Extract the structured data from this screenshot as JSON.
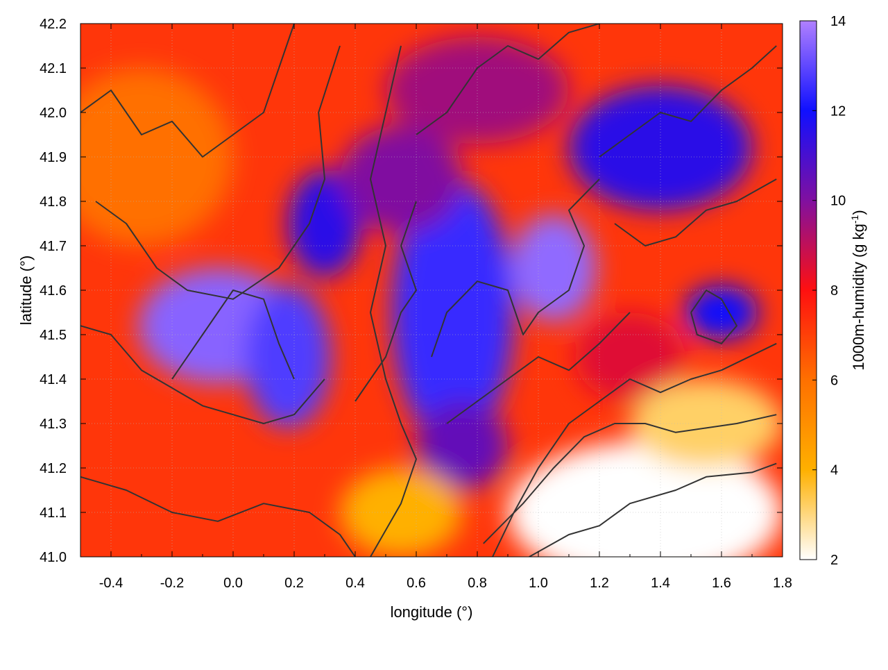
{
  "chart_data": {
    "type": "heatmap",
    "title": "",
    "xlabel": "longitude (°)",
    "ylabel": "latitude (°)",
    "xlim": [
      -0.5,
      1.8
    ],
    "ylim": [
      41.0,
      42.2
    ],
    "x_ticks": [
      "-0.4",
      "-0.2",
      "0.0",
      "0.2",
      "0.4",
      "0.6",
      "0.8",
      "1.0",
      "1.2",
      "1.4",
      "1.6",
      "1.8"
    ],
    "x_tick_values": [
      -0.4,
      -0.2,
      0.0,
      0.2,
      0.4,
      0.6,
      0.8,
      1.0,
      1.2,
      1.4,
      1.6,
      1.8
    ],
    "y_ticks": [
      "41.0",
      "41.1",
      "41.2",
      "41.3",
      "41.4",
      "41.5",
      "41.6",
      "41.7",
      "41.8",
      "41.9",
      "42.0",
      "42.1",
      "42.2"
    ],
    "y_tick_values": [
      41.0,
      41.1,
      41.2,
      41.3,
      41.4,
      41.5,
      41.6,
      41.7,
      41.8,
      41.9,
      42.0,
      42.1,
      42.2
    ],
    "grid": true,
    "colorbar": {
      "label_main": "1000m-humidity (g kg",
      "label_sup": "-1",
      "label_end": ")",
      "range": [
        2,
        14
      ],
      "ticks": [
        "2",
        "4",
        "6",
        "8",
        "10",
        "12",
        "14"
      ],
      "tick_values": [
        2,
        4,
        6,
        8,
        10,
        12,
        14
      ],
      "colors": [
        "#ffffff",
        "#ffb000",
        "#ff7000",
        "#ff1010",
        "#8010a0",
        "#1010ff",
        "#b080ff"
      ]
    },
    "field_blobs": [
      {
        "lon": -0.05,
        "lat": 41.52,
        "rx": 0.26,
        "ry": 0.13,
        "value": 13.5
      },
      {
        "lon": 0.18,
        "lat": 41.45,
        "rx": 0.14,
        "ry": 0.16,
        "value": 12.8
      },
      {
        "lon": 0.3,
        "lat": 41.75,
        "rx": 0.12,
        "ry": 0.12,
        "value": 11.5
      },
      {
        "lon": 0.72,
        "lat": 41.55,
        "rx": 0.2,
        "ry": 0.3,
        "value": 12.5
      },
      {
        "lon": 1.05,
        "lat": 41.65,
        "rx": 0.14,
        "ry": 0.12,
        "value": 13.6
      },
      {
        "lon": 1.4,
        "lat": 41.92,
        "rx": 0.3,
        "ry": 0.14,
        "value": 11.5
      },
      {
        "lon": 1.6,
        "lat": 41.55,
        "rx": 0.12,
        "ry": 0.06,
        "value": 12.0
      },
      {
        "lon": 0.8,
        "lat": 42.05,
        "rx": 0.3,
        "ry": 0.12,
        "value": 9.5
      },
      {
        "lon": 0.55,
        "lat": 41.85,
        "rx": 0.2,
        "ry": 0.12,
        "value": 10.0
      },
      {
        "lon": 0.75,
        "lat": 41.25,
        "rx": 0.15,
        "ry": 0.1,
        "value": 10.5
      },
      {
        "lon": 1.3,
        "lat": 41.45,
        "rx": 0.18,
        "ry": 0.1,
        "value": 8.5
      },
      {
        "lon": 1.35,
        "lat": 41.1,
        "rx": 0.45,
        "ry": 0.16,
        "value": 2.0
      },
      {
        "lon": 1.55,
        "lat": 41.3,
        "rx": 0.25,
        "ry": 0.1,
        "value": 3.2
      },
      {
        "lon": 0.55,
        "lat": 41.1,
        "rx": 0.2,
        "ry": 0.1,
        "value": 4.0
      },
      {
        "lon": -0.3,
        "lat": 41.9,
        "rx": 0.3,
        "ry": 0.2,
        "value": 6.0
      }
    ],
    "contours": [
      [
        [
          0.97,
          41.0
        ],
        [
          1.1,
          41.05
        ],
        [
          1.2,
          41.07
        ],
        [
          1.3,
          41.12
        ],
        [
          1.45,
          41.15
        ],
        [
          1.55,
          41.18
        ],
        [
          1.7,
          41.19
        ],
        [
          1.78,
          41.21
        ]
      ],
      [
        [
          0.82,
          41.03
        ],
        [
          0.95,
          41.12
        ],
        [
          1.05,
          41.2
        ],
        [
          1.15,
          41.27
        ],
        [
          1.25,
          41.3
        ],
        [
          1.35,
          41.3
        ],
        [
          1.45,
          41.28
        ],
        [
          1.55,
          41.29
        ],
        [
          1.65,
          41.3
        ],
        [
          1.78,
          41.32
        ]
      ],
      [
        [
          0.85,
          41.0
        ],
        [
          0.92,
          41.1
        ],
        [
          1.0,
          41.2
        ],
        [
          1.1,
          41.3
        ],
        [
          1.2,
          41.35
        ],
        [
          1.3,
          41.4
        ],
        [
          1.4,
          41.37
        ],
        [
          1.5,
          41.4
        ],
        [
          1.6,
          41.42
        ],
        [
          1.78,
          41.48
        ]
      ],
      [
        [
          0.45,
          41.0
        ],
        [
          0.55,
          41.12
        ],
        [
          0.6,
          41.22
        ],
        [
          0.55,
          41.3
        ],
        [
          0.5,
          41.4
        ],
        [
          0.45,
          41.55
        ],
        [
          0.5,
          41.7
        ],
        [
          0.45,
          41.85
        ],
        [
          0.5,
          42.0
        ],
        [
          0.55,
          42.15
        ]
      ],
      [
        [
          -0.5,
          41.52
        ],
        [
          -0.4,
          41.5
        ],
        [
          -0.3,
          41.42
        ],
        [
          -0.2,
          41.38
        ],
        [
          -0.1,
          41.34
        ],
        [
          0.0,
          41.32
        ],
        [
          0.1,
          41.3
        ],
        [
          0.2,
          41.32
        ],
        [
          0.3,
          41.4
        ]
      ],
      [
        [
          -0.5,
          41.18
        ],
        [
          -0.35,
          41.15
        ],
        [
          -0.2,
          41.1
        ],
        [
          -0.05,
          41.08
        ],
        [
          0.1,
          41.12
        ],
        [
          0.25,
          41.1
        ],
        [
          0.35,
          41.05
        ],
        [
          0.4,
          41.0
        ]
      ],
      [
        [
          -0.45,
          41.8
        ],
        [
          -0.35,
          41.75
        ],
        [
          -0.25,
          41.65
        ],
        [
          -0.15,
          41.6
        ],
        [
          0.0,
          41.58
        ],
        [
          0.15,
          41.65
        ],
        [
          0.25,
          41.75
        ],
        [
          0.3,
          41.85
        ],
        [
          0.28,
          42.0
        ],
        [
          0.35,
          42.15
        ]
      ],
      [
        [
          -0.5,
          42.0
        ],
        [
          -0.4,
          42.05
        ],
        [
          -0.3,
          41.95
        ],
        [
          -0.2,
          41.98
        ],
        [
          -0.1,
          41.9
        ],
        [
          0.0,
          41.95
        ],
        [
          0.1,
          42.0
        ],
        [
          0.15,
          42.1
        ],
        [
          0.2,
          42.2
        ]
      ],
      [
        [
          0.65,
          41.45
        ],
        [
          0.7,
          41.55
        ],
        [
          0.8,
          41.62
        ],
        [
          0.9,
          41.6
        ],
        [
          0.95,
          41.5
        ],
        [
          1.0,
          41.55
        ],
        [
          1.1,
          41.6
        ],
        [
          1.15,
          41.7
        ],
        [
          1.1,
          41.78
        ],
        [
          1.2,
          41.85
        ]
      ],
      [
        [
          0.7,
          41.3
        ],
        [
          0.8,
          41.35
        ],
        [
          0.9,
          41.4
        ],
        [
          1.0,
          41.45
        ],
        [
          1.1,
          41.42
        ],
        [
          1.2,
          41.48
        ],
        [
          1.3,
          41.55
        ]
      ],
      [
        [
          1.2,
          41.9
        ],
        [
          1.3,
          41.95
        ],
        [
          1.4,
          42.0
        ],
        [
          1.5,
          41.98
        ],
        [
          1.6,
          42.05
        ],
        [
          1.7,
          42.1
        ],
        [
          1.78,
          42.15
        ]
      ],
      [
        [
          1.25,
          41.75
        ],
        [
          1.35,
          41.7
        ],
        [
          1.45,
          41.72
        ],
        [
          1.55,
          41.78
        ],
        [
          1.65,
          41.8
        ],
        [
          1.78,
          41.85
        ]
      ],
      [
        [
          0.6,
          41.95
        ],
        [
          0.7,
          42.0
        ],
        [
          0.8,
          42.1
        ],
        [
          0.9,
          42.15
        ],
        [
          1.0,
          42.12
        ],
        [
          1.1,
          42.18
        ],
        [
          1.2,
          42.2
        ]
      ],
      [
        [
          -0.2,
          41.4
        ],
        [
          -0.1,
          41.5
        ],
        [
          0.0,
          41.6
        ],
        [
          0.1,
          41.58
        ],
        [
          0.15,
          41.48
        ],
        [
          0.2,
          41.4
        ]
      ],
      [
        [
          0.4,
          41.35
        ],
        [
          0.5,
          41.45
        ],
        [
          0.55,
          41.55
        ],
        [
          0.6,
          41.6
        ],
        [
          0.55,
          41.7
        ],
        [
          0.6,
          41.8
        ]
      ],
      [
        [
          1.5,
          41.55
        ],
        [
          1.55,
          41.6
        ],
        [
          1.6,
          41.58
        ],
        [
          1.65,
          41.52
        ],
        [
          1.6,
          41.48
        ],
        [
          1.52,
          41.5
        ],
        [
          1.5,
          41.55
        ]
      ]
    ]
  }
}
